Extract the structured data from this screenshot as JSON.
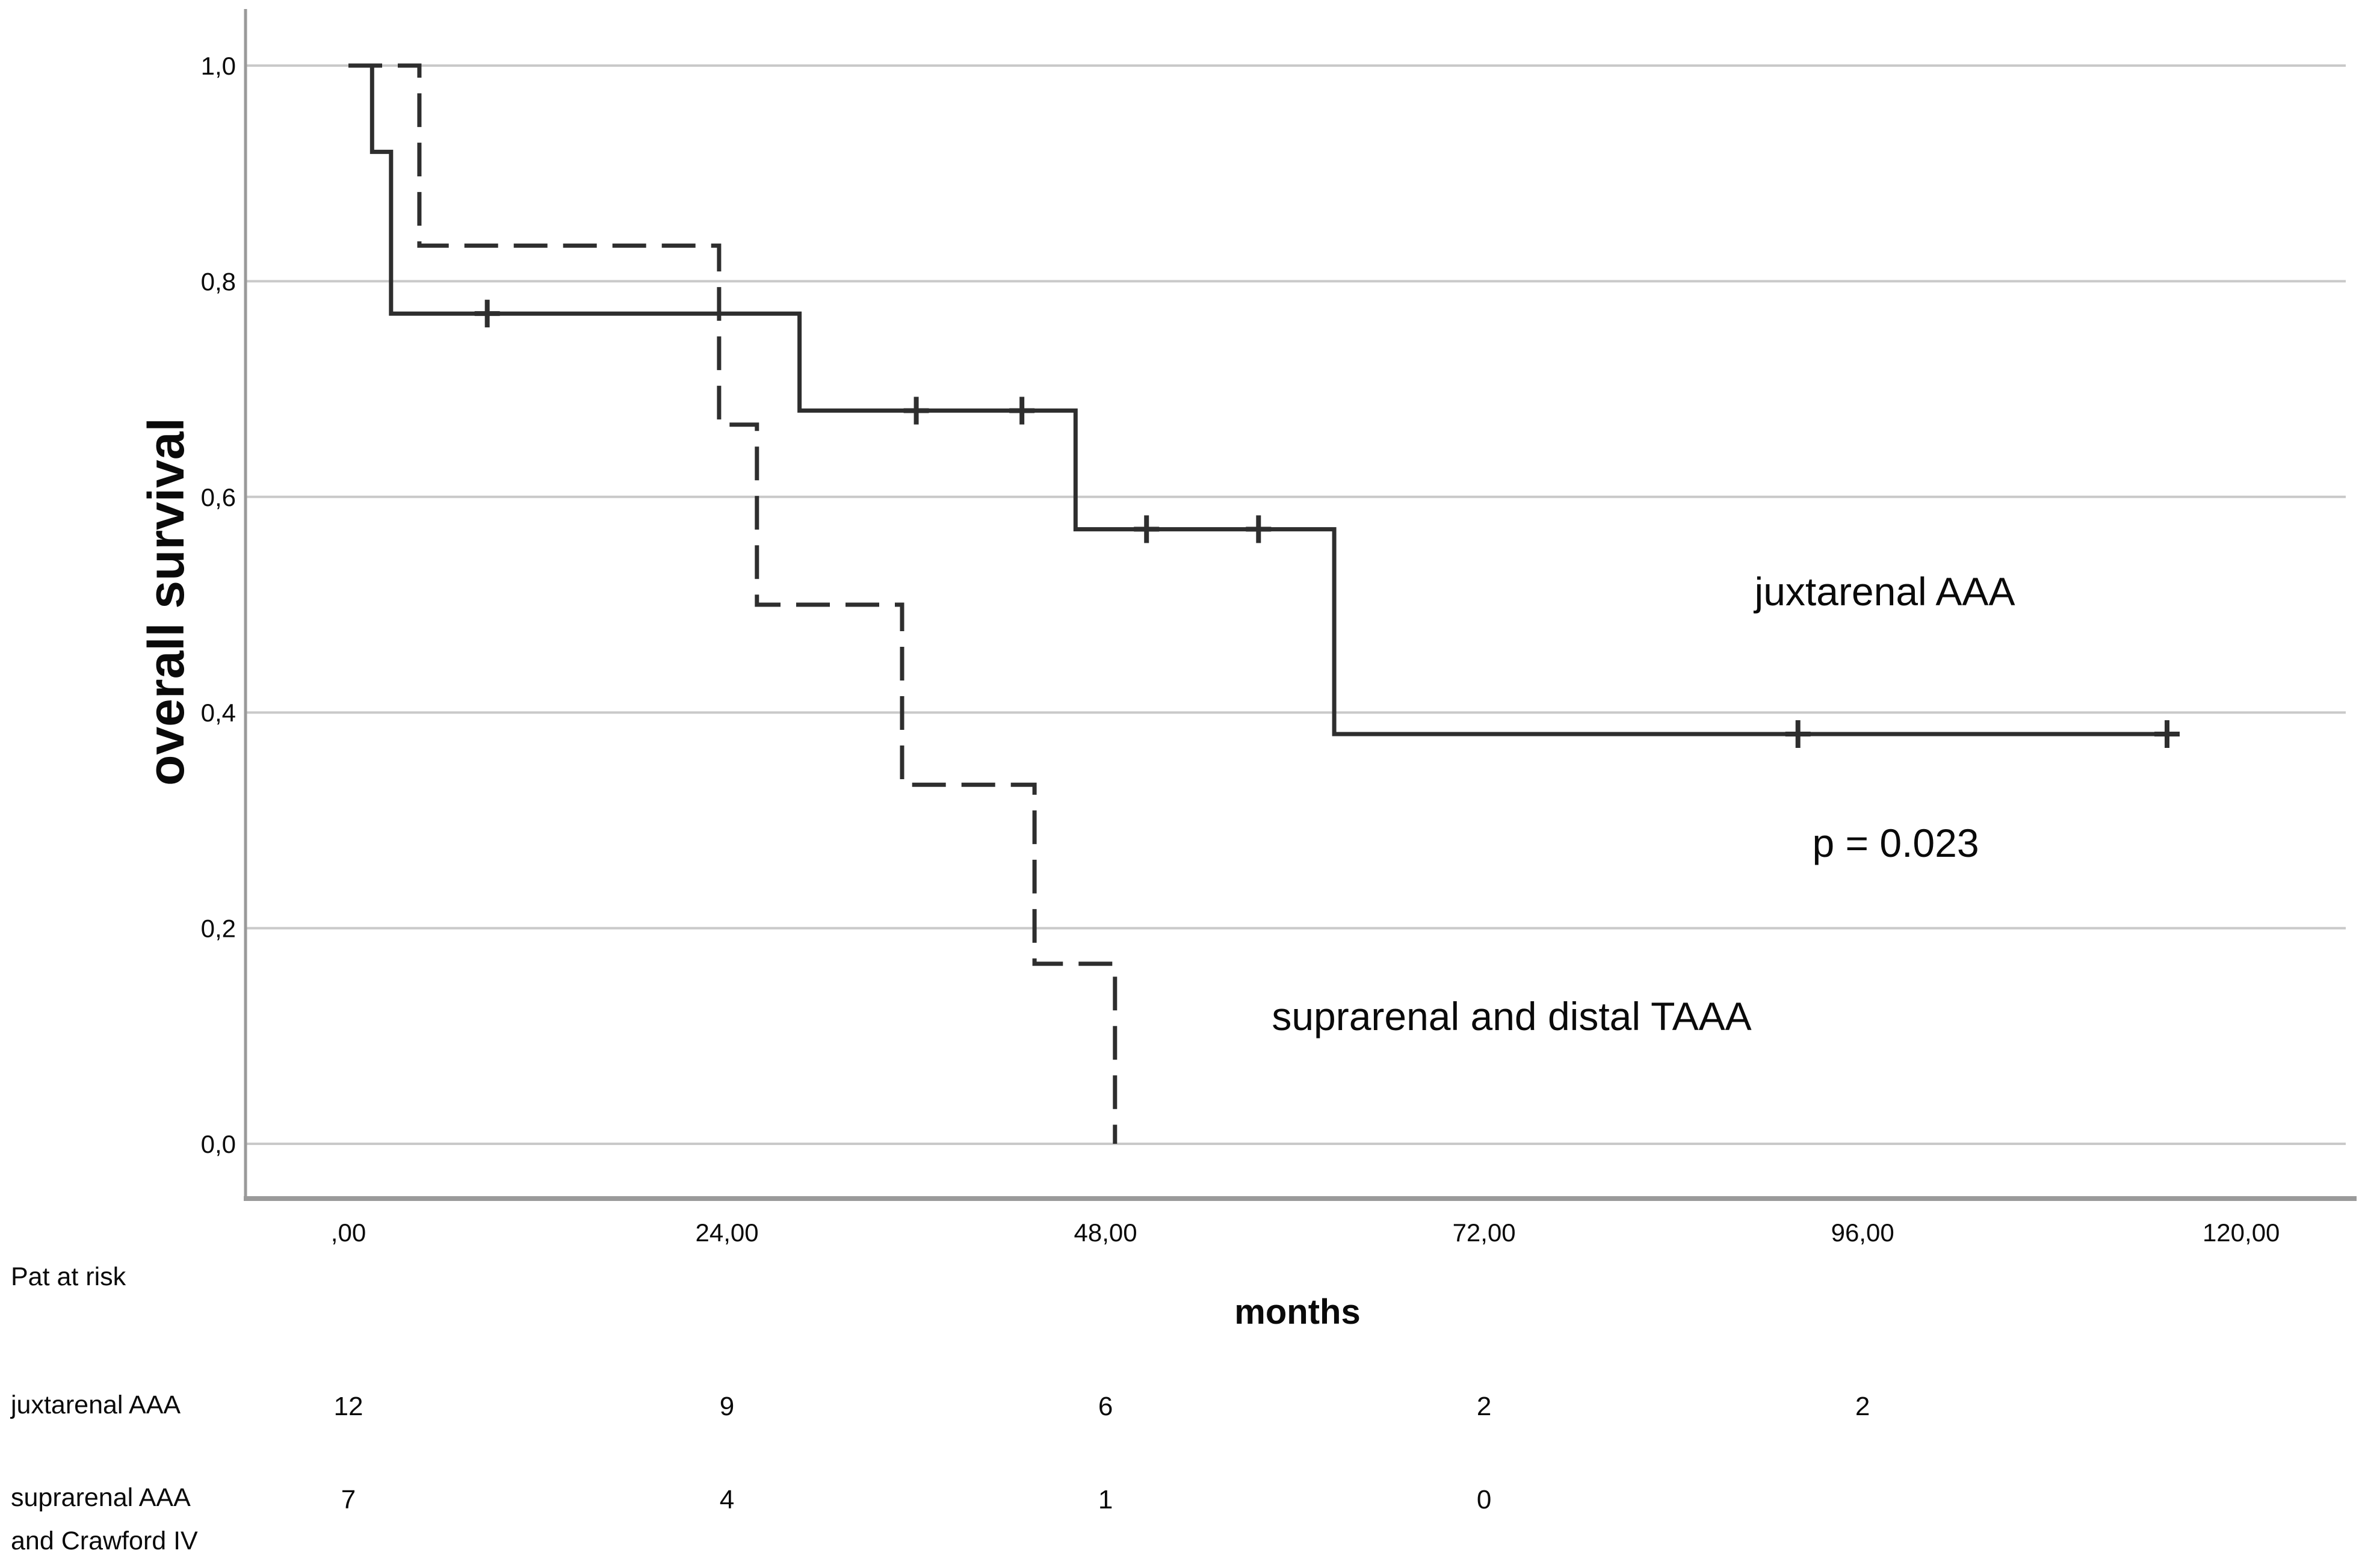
{
  "figure": {
    "background": "#ffffff",
    "text_color": "#0a0a0a",
    "gridline_color": "#c9c9c9",
    "axis_color": "#9a9a9a",
    "curve_color": "#2e2e2e"
  },
  "chart_data": {
    "type": "line",
    "subtype": "kaplan-meier-step-curves",
    "title": "",
    "xlabel": "months",
    "ylabel": "overall survival",
    "xlim": [
      -6.5,
      127
    ],
    "ylim": [
      -0.05,
      1.05
    ],
    "grid": "horizontal",
    "legend_position": "none (labels annotated inside plot)",
    "x_ticks": [
      0,
      24,
      48,
      72,
      96,
      120
    ],
    "x_tick_labels": [
      ",00",
      "24,00",
      "48,00",
      "72,00",
      "96,00",
      "120,00"
    ],
    "y_ticks": [
      1.0,
      0.8,
      0.6,
      0.4,
      0.2,
      0.0
    ],
    "y_tick_labels": [
      "1,0",
      "0,8",
      "0,6",
      "0,4",
      "0,2",
      "0,0"
    ],
    "annotations": [
      {
        "text": "juxtarenal AAA",
        "x_months": 97.4,
        "y_survival": 0.51
      },
      {
        "text": "p = 0.023",
        "x_months": 98.1,
        "y_survival": 0.27
      },
      {
        "text": "suprarenal and distal TAAA",
        "x_months": 73.8,
        "y_survival": 0.12
      }
    ],
    "series": [
      {
        "name": "juxtarenal AAA",
        "line_style": "solid",
        "color": "#2e2e2e",
        "steps": [
          [
            0,
            1.0
          ],
          [
            1.5,
            1.0
          ],
          [
            1.5,
            0.92
          ],
          [
            2.7,
            0.92
          ],
          [
            2.7,
            0.77
          ],
          [
            28.6,
            0.77
          ],
          [
            28.6,
            0.68
          ],
          [
            46.1,
            0.68
          ],
          [
            46.1,
            0.57
          ],
          [
            62.5,
            0.57
          ],
          [
            62.5,
            0.38
          ],
          [
            115.3,
            0.38
          ]
        ],
        "censor_marks": [
          [
            8.8,
            0.77
          ],
          [
            36.0,
            0.68
          ],
          [
            42.7,
            0.68
          ],
          [
            50.6,
            0.57
          ],
          [
            57.7,
            0.57
          ],
          [
            91.9,
            0.38
          ],
          [
            115.3,
            0.38
          ]
        ]
      },
      {
        "name": "suprarenal and distal TAAA",
        "line_style": "dashed",
        "color": "#2e2e2e",
        "steps": [
          [
            0,
            1.0
          ],
          [
            4.5,
            1.0
          ],
          [
            4.5,
            0.833
          ],
          [
            23.5,
            0.833
          ],
          [
            23.5,
            0.667
          ],
          [
            25.9,
            0.667
          ],
          [
            25.9,
            0.5
          ],
          [
            35.1,
            0.5
          ],
          [
            35.1,
            0.333
          ],
          [
            43.5,
            0.333
          ],
          [
            43.5,
            0.167
          ],
          [
            48.6,
            0.167
          ],
          [
            48.6,
            0.0
          ]
        ],
        "censor_marks": []
      }
    ]
  },
  "risk_table": {
    "title": "Pat at risk",
    "time_points": [
      0,
      24,
      48,
      72,
      96
    ],
    "rows": [
      {
        "label_lines": [
          "juxtarenal AAA"
        ],
        "counts": [
          "12",
          "9",
          "6",
          "2",
          "2"
        ]
      },
      {
        "label_lines": [
          "suprarenal AAA",
          "and Crawford IV"
        ],
        "counts": [
          "7",
          "4",
          "1",
          "0"
        ]
      }
    ]
  }
}
